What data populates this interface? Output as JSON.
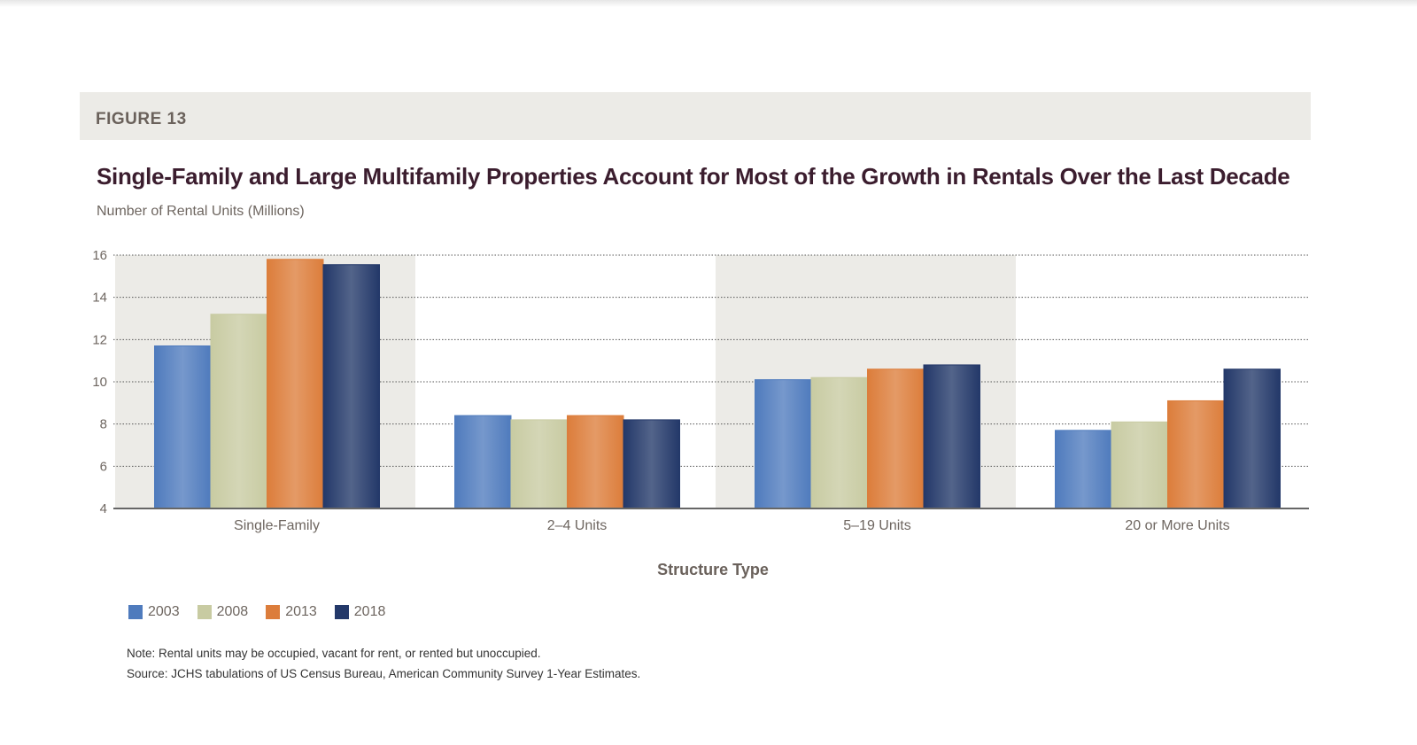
{
  "figure_label": "FIGURE 13",
  "chart_data": {
    "type": "bar",
    "title": "Single-Family and Large Multifamily Properties Account for Most of the Growth in Rentals Over the Last Decade",
    "ylabel": "Number of Rental Units (Millions)",
    "xlabel": "Structure Type",
    "categories": [
      "Single-Family",
      "2–4 Units",
      "5–19 Units",
      "20 or More Units"
    ],
    "ylim": [
      4,
      16
    ],
    "yticks": [
      4,
      6,
      8,
      10,
      12,
      14,
      16
    ],
    "grid": true,
    "legend_position": "bottom-left",
    "series": [
      {
        "name": "2003",
        "color": "#4f7bbd",
        "values": [
          11.7,
          8.4,
          10.1,
          7.7
        ]
      },
      {
        "name": "2008",
        "color": "#c8cba2",
        "values": [
          13.2,
          8.2,
          10.2,
          8.1
        ]
      },
      {
        "name": "2013",
        "color": "#dc7d3b",
        "values": [
          15.8,
          8.4,
          10.6,
          9.1
        ]
      },
      {
        "name": "2018",
        "color": "#233869",
        "values": [
          15.55,
          8.2,
          10.8,
          10.6
        ]
      }
    ],
    "shaded_categories": [
      0,
      2
    ],
    "shade_color": "#ecebe7"
  },
  "notes": {
    "note": "Note: Rental units may be occupied, vacant for rent, or rented but unoccupied.",
    "source": "Source: JCHS tabulations of US Census Bureau, American Community Survey 1-Year Estimates."
  }
}
